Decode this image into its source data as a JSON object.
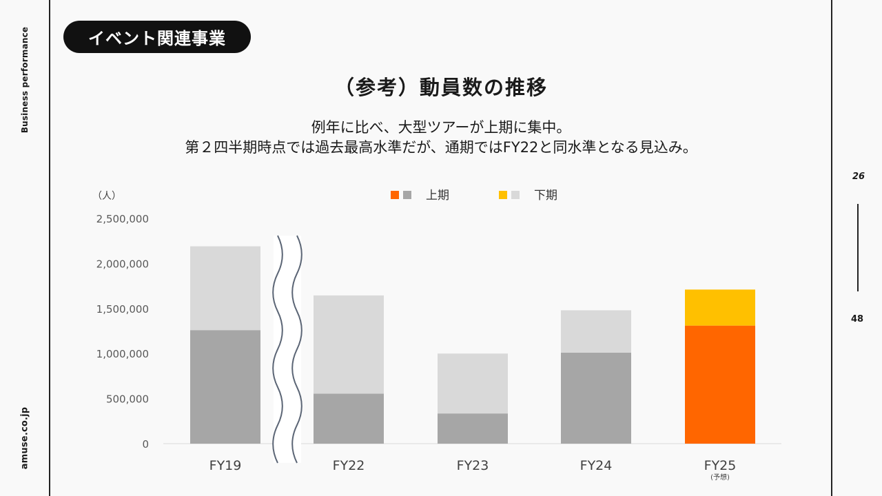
{
  "sidebar": {
    "top_label": "Business performance",
    "bottom_label": "amuse.co.jp"
  },
  "pager": {
    "current": "26",
    "total": "48"
  },
  "header": {
    "section_label": "イベント関連事業"
  },
  "title": "（参考）動員数の推移",
  "subtitle": {
    "line1": "例年に比べ、大型ツアーが上期に集中。",
    "line2": "第２四半期時点では過去最高水準だが、通期ではFY22と同水準となる見込み。"
  },
  "chart_data": {
    "type": "bar",
    "stacked": true,
    "ylabel": "（人）",
    "ylim": [
      0,
      2500000
    ],
    "yticks": [
      "2,500,000",
      "2,000,000",
      "1,500,000",
      "1,000,000",
      "500,000",
      "0"
    ],
    "categories": [
      "FY19",
      "FY22",
      "FY23",
      "FY24",
      "FY25"
    ],
    "category_notes": [
      "",
      "",
      "",
      "",
      "(予想)"
    ],
    "axis_break_after": "FY19",
    "legend_position": "top-center",
    "series": [
      {
        "name": "上期",
        "values": [
          1260000,
          555000,
          335000,
          1010000,
          1310000
        ],
        "colors": [
          "#a6a6a6",
          "#a6a6a6",
          "#a6a6a6",
          "#a6a6a6",
          "#ff6600"
        ]
      },
      {
        "name": "下期",
        "values": [
          930000,
          1090000,
          665000,
          470000,
          400000
        ],
        "colors": [
          "#d9d9d9",
          "#d9d9d9",
          "#d9d9d9",
          "#d9d9d9",
          "#ffc000"
        ]
      }
    ],
    "legend": [
      {
        "label": "上期",
        "swatches": [
          "#ff6600",
          "#a6a6a6"
        ]
      },
      {
        "label": "下期",
        "swatches": [
          "#ffc000",
          "#d9d9d9"
        ]
      }
    ]
  }
}
